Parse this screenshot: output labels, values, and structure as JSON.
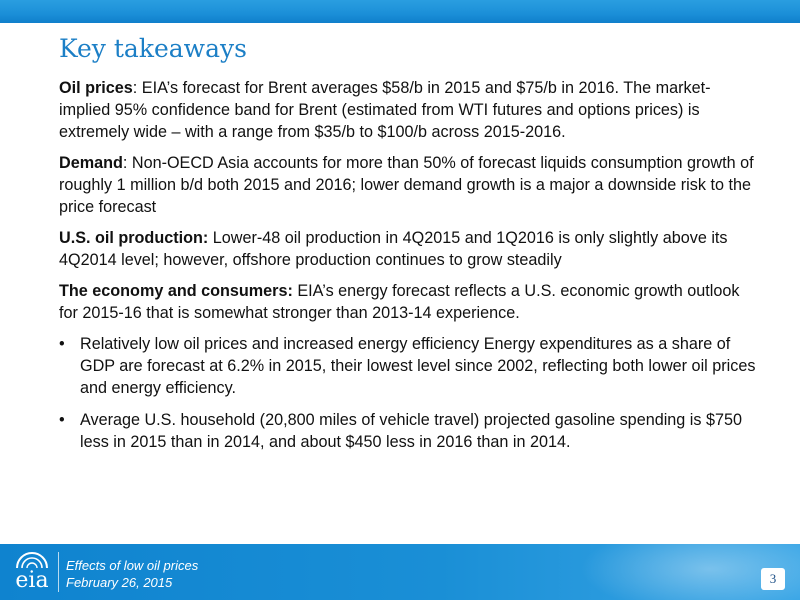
{
  "slide": {
    "title": "Key takeaways",
    "paragraphs": [
      {
        "heading": "Oil prices",
        "sep": ":  ",
        "text": "EIA’s forecast for Brent averages $58/b in 2015 and $75/b in 2016.  The market-implied 95% confidence band for Brent (estimated from WTI futures and options prices) is extremely wide – with a range from $35/b to $100/b across 2015-2016."
      },
      {
        "heading": "Demand",
        "sep": ":  ",
        "text": "Non-OECD Asia accounts for more than 50% of forecast liquids consumption growth of roughly 1 million b/d both 2015 and 2016; lower demand growth is a major a downside risk to the price forecast"
      },
      {
        "heading": "U.S. oil production:",
        "sep": "  ",
        "text": "Lower-48 oil production in 4Q2015 and 1Q2016 is only slightly above its 4Q2014 level; however, offshore production continues to grow steadily"
      },
      {
        "heading": "The economy and consumers:",
        "sep": "  ",
        "text": "EIA’s energy forecast reflects a U.S. economic growth outlook for 2015-16 that is somewhat stronger than 2013-14 experience."
      }
    ],
    "bullet_char": "•",
    "bullets": [
      "Relatively low oil prices and increased energy efficiency Energy expenditures as a share of GDP are forecast at 6.2% in 2015, their lowest level since 2002, reflecting both lower oil prices and energy efficiency.",
      "Average U.S. household (20,800 miles of vehicle travel) projected gasoline spending is $750 less in 2015 than in 2014, and about $450 less in 2016 than in 2014."
    ]
  },
  "footer": {
    "logo_text": "eia",
    "caption_line1": "Effects of low oil prices",
    "caption_line2": "February 26, 2015",
    "page_number": "3"
  },
  "colors": {
    "title": "#1c7fc6",
    "bar": "#1b8fd8",
    "footer": "#0f83cf"
  }
}
